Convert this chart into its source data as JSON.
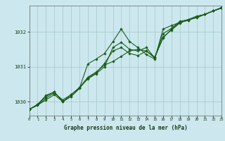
{
  "title": "Graphe pression niveau de la mer (hPa)",
  "background_color": "#cce8ee",
  "grid_color": "#aacccc",
  "line_color": "#1a5c1a",
  "x_min": 0,
  "x_max": 23,
  "y_min": 1029.6,
  "y_max": 1032.75,
  "y_ticks": [
    1030,
    1031,
    1032
  ],
  "x_ticks": [
    0,
    1,
    2,
    3,
    4,
    5,
    6,
    7,
    8,
    9,
    10,
    11,
    12,
    13,
    14,
    15,
    16,
    17,
    18,
    19,
    20,
    21,
    22,
    23
  ],
  "series": [
    [
      1029.78,
      1029.9,
      1030.05,
      1030.2,
      1030.0,
      1030.2,
      1030.4,
      1030.65,
      1030.8,
      1031.0,
      1031.55,
      1031.7,
      1031.5,
      1031.45,
      1031.55,
      1031.25,
      1031.95,
      1032.1,
      1032.3,
      1032.35,
      1032.45,
      1032.5,
      1032.6,
      1032.7
    ],
    [
      1029.78,
      1029.9,
      1030.1,
      1030.25,
      1030.05,
      1030.2,
      1030.4,
      1030.7,
      1030.85,
      1031.05,
      1031.15,
      1031.3,
      1031.45,
      1031.5,
      1031.45,
      1031.25,
      1031.85,
      1032.05,
      1032.25,
      1032.35,
      1032.4,
      1032.5,
      1032.6,
      1032.68
    ],
    [
      1029.78,
      1029.92,
      1030.15,
      1030.28,
      1030.0,
      1030.15,
      1030.38,
      1030.68,
      1030.82,
      1031.1,
      1031.45,
      1031.55,
      1031.38,
      1031.32,
      1031.45,
      1031.28,
      1031.82,
      1032.08,
      1032.27,
      1032.33,
      1032.42,
      1032.5,
      1032.6,
      1032.68
    ],
    [
      1029.78,
      1029.92,
      1030.18,
      1030.28,
      1030.0,
      1030.15,
      1030.38,
      1031.08,
      1031.22,
      1031.38,
      1031.72,
      1032.08,
      1031.72,
      1031.55,
      1031.35,
      1031.22,
      1032.08,
      1032.18,
      1032.27,
      1032.33,
      1032.42,
      1032.5,
      1032.6,
      1032.68
    ]
  ]
}
